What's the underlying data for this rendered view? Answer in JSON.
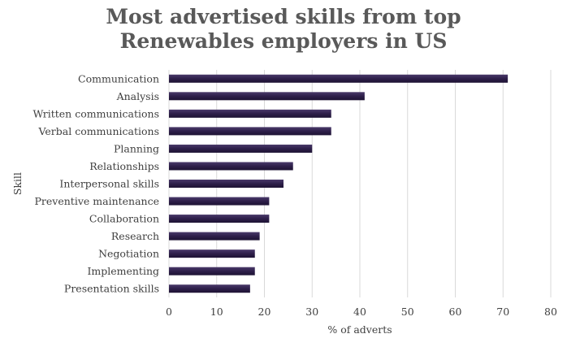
{
  "chart_data": {
    "type": "bar",
    "orientation": "horizontal",
    "title": "Most advertised skills from top Renewables employers in US",
    "title_lines": [
      "Most advertised skills from top",
      "Renewables employers in US"
    ],
    "xlabel": "% of adverts",
    "ylabel": "Skill",
    "xlim": [
      0,
      80
    ],
    "xticks": [
      0,
      10,
      20,
      30,
      40,
      50,
      60,
      70,
      80
    ],
    "grid": "vertical",
    "bar_color": "#2e1f4a",
    "categories": [
      "Communication",
      "Analysis",
      "Written communications",
      "Verbal communications",
      "Planning",
      "Relationships",
      "Interpersonal skills",
      "Preventive maintenance",
      "Collaboration",
      "Research",
      "Negotiation",
      "Implementing",
      "Presentation skills"
    ],
    "values": [
      71,
      41,
      34,
      34,
      30,
      26,
      24,
      21,
      21,
      19,
      18,
      18,
      17
    ]
  }
}
